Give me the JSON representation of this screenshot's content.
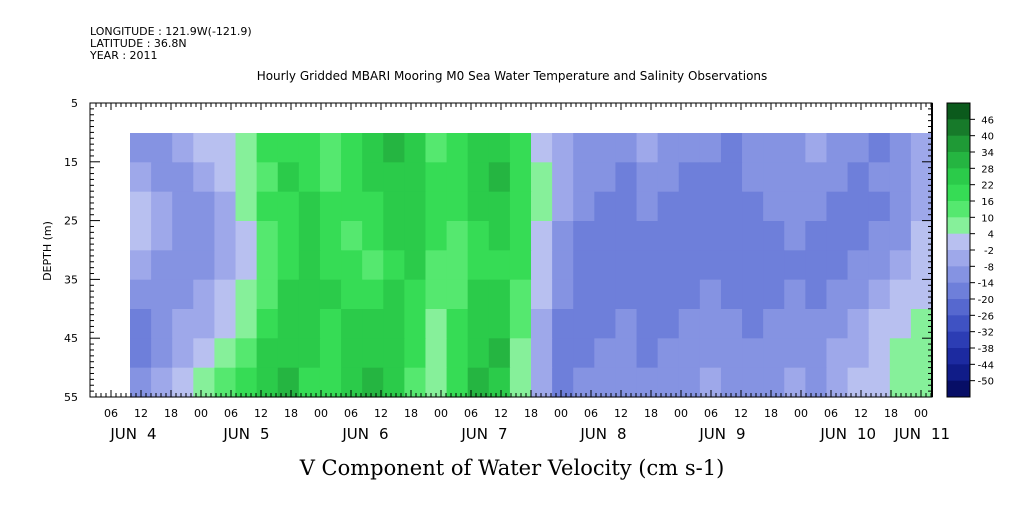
{
  "header": {
    "longitude": "LONGITUDE : 121.9W(-121.9)",
    "latitude": "LATITUDE : 36.8N",
    "year": "YEAR : 2011"
  },
  "chart_data": {
    "type": "heatmap",
    "title": "Hourly Gridded MBARI Mooring M0 Sea Water Temperature and Salinity Observations",
    "ylabel": "DEPTH (m)",
    "xlabel": "V Component of Water Velocity (cm s-1)",
    "ylim": [
      55,
      5
    ],
    "y_ticks": [
      "5",
      "15",
      "25",
      "35",
      "45",
      "55"
    ],
    "x_hour_ticks": [
      "06",
      "12",
      "18",
      "00",
      "06",
      "12",
      "18",
      "00",
      "06",
      "12",
      "18",
      "00",
      "06",
      "12",
      "18",
      "00",
      "06",
      "12",
      "18",
      "00",
      "06",
      "12",
      "18",
      "00",
      "06",
      "12",
      "18",
      "00"
    ],
    "x_day_labels": [
      "JUN 4",
      "JUN 5",
      "JUN 6",
      "JUN 7",
      "JUN 8",
      "JUN 9",
      "JUN 10",
      "JUN 11"
    ],
    "colorbar_labels": [
      "46",
      "40",
      "34",
      "28",
      "22",
      "16",
      "10",
      "4",
      "-2",
      "-8",
      "-14",
      "-20",
      "-26",
      "-32",
      "-38",
      "-44",
      "-50"
    ],
    "colorbar_colors": [
      "#0b5a1c",
      "#177a2a",
      "#1f9a36",
      "#25b541",
      "#2bcb4a",
      "#36dc55",
      "#55e86f",
      "#86f09a",
      "#b8c0f0",
      "#9ea8ea",
      "#8593e2",
      "#6e7fda",
      "#5668cf",
      "#3f52c3",
      "#2c3db4",
      "#1c2aa0",
      "#101c88",
      "#070e66"
    ],
    "series": [
      {
        "v_cm_s": [
          -6,
          -8,
          -4,
          2,
          6,
          12,
          18,
          22,
          20,
          16,
          22,
          28,
          30,
          26,
          14,
          22,
          28,
          26,
          18,
          6,
          -2,
          -6,
          -8,
          -10,
          -4,
          -6,
          -8,
          -10,
          -12,
          -10,
          -8,
          -6,
          -4,
          -8,
          -10,
          -12,
          -8,
          -4
        ]
      },
      {
        "v_cm_s": [
          -2,
          -6,
          -8,
          -4,
          4,
          12,
          16,
          24,
          22,
          16,
          20,
          24,
          28,
          26,
          18,
          22,
          26,
          30,
          20,
          10,
          -2,
          -8,
          -10,
          -12,
          -8,
          -10,
          -12,
          -14,
          -12,
          -10,
          -8,
          -6,
          -8,
          -10,
          -12,
          -10,
          -6,
          -2
        ]
      },
      {
        "v_cm_s": [
          2,
          -4,
          -10,
          -8,
          0,
          8,
          18,
          22,
          24,
          18,
          20,
          22,
          26,
          28,
          20,
          18,
          24,
          28,
          22,
          8,
          -4,
          -10,
          -12,
          -14,
          -10,
          -12,
          -14,
          -16,
          -14,
          -12,
          -10,
          -8,
          -10,
          -12,
          -14,
          -12,
          -8,
          -4
        ]
      },
      {
        "v_cm_s": [
          4,
          0,
          -8,
          -10,
          -4,
          6,
          16,
          20,
          26,
          20,
          16,
          18,
          24,
          26,
          20,
          16,
          22,
          24,
          20,
          6,
          -6,
          -12,
          -14,
          -16,
          -12,
          -14,
          -16,
          -14,
          -12,
          -14,
          -12,
          -10,
          -12,
          -14,
          -12,
          -10,
          -6,
          2
        ]
      },
      {
        "v_cm_s": [
          -4,
          -6,
          -10,
          -8,
          -2,
          4,
          14,
          22,
          28,
          22,
          18,
          16,
          22,
          24,
          16,
          14,
          20,
          22,
          18,
          4,
          -8,
          -14,
          -16,
          -14,
          -14,
          -16,
          -14,
          -12,
          -14,
          -16,
          -14,
          -12,
          -14,
          -12,
          -10,
          -8,
          -4,
          4
        ]
      },
      {
        "v_cm_s": [
          -8,
          -10,
          -6,
          -4,
          2,
          8,
          16,
          24,
          28,
          24,
          22,
          20,
          24,
          22,
          14,
          16,
          24,
          26,
          16,
          2,
          -10,
          -16,
          -14,
          -12,
          -16,
          -14,
          -12,
          -10,
          -12,
          -14,
          -12,
          -10,
          -12,
          -10,
          -6,
          -2,
          2,
          6
        ]
      },
      {
        "v_cm_s": [
          -12,
          -8,
          -4,
          0,
          6,
          12,
          20,
          26,
          26,
          22,
          24,
          24,
          26,
          20,
          12,
          18,
          26,
          28,
          14,
          0,
          -12,
          -14,
          -12,
          -10,
          -14,
          -12,
          -10,
          -8,
          -10,
          -12,
          -10,
          -8,
          -10,
          -6,
          -2,
          2,
          6,
          8
        ]
      },
      {
        "v_cm_s": [
          -14,
          -6,
          -2,
          4,
          10,
          16,
          24,
          28,
          24,
          20,
          26,
          28,
          28,
          18,
          10,
          20,
          28,
          30,
          12,
          -2,
          -14,
          -12,
          -10,
          -8,
          -12,
          -10,
          -8,
          -6,
          -8,
          -10,
          -8,
          -6,
          -8,
          -4,
          0,
          4,
          8,
          10
        ]
      },
      {
        "v_cm_s": [
          -10,
          -4,
          2,
          8,
          14,
          20,
          26,
          30,
          22,
          18,
          28,
          30,
          26,
          16,
          8,
          22,
          30,
          28,
          10,
          -4,
          -12,
          -10,
          -8,
          -6,
          -10,
          -8,
          -6,
          -4,
          -6,
          -8,
          -6,
          -4,
          -6,
          -2,
          2,
          6,
          10,
          12
        ]
      }
    ]
  }
}
